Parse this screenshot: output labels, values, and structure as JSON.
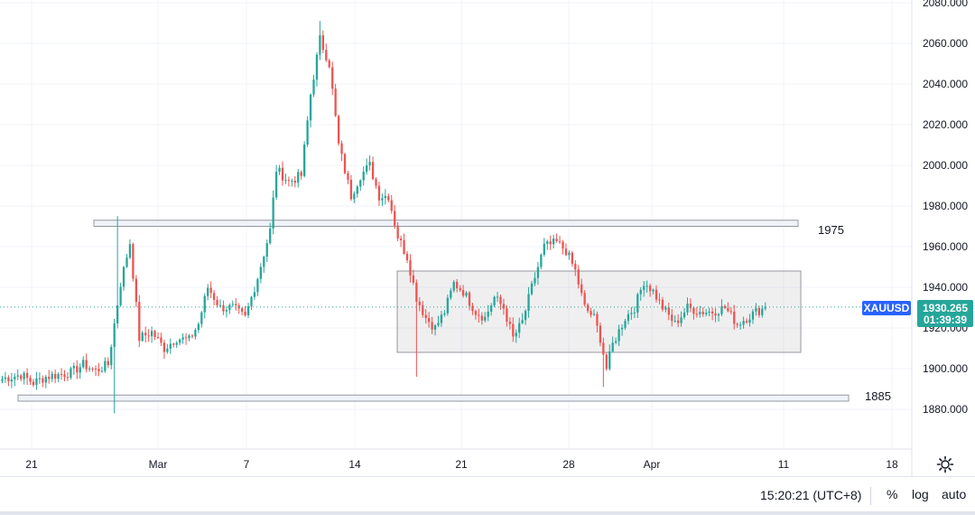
{
  "chart_data": {
    "type": "candlestick",
    "symbol": "XAUUSD",
    "last_price": "1930.265",
    "countdown": "01:39:39",
    "y_ticks": [
      "1880.000",
      "1900.000",
      "1920.000",
      "1940.000",
      "1960.000",
      "1980.000",
      "2000.000",
      "2020.000",
      "2040.000",
      "2060.000",
      "2080.000"
    ],
    "x_ticks": [
      "21",
      "Mar",
      "7",
      "14",
      "21",
      "28",
      "Apr",
      "11",
      "18"
    ],
    "annotations": [
      "1975",
      "1885"
    ],
    "levels": {
      "resistance_1975": {
        "low": 1970,
        "high": 1973,
        "label": "1975"
      },
      "support_1885": {
        "low": 1884,
        "high": 1887,
        "label": "1885"
      },
      "range_box": {
        "low": 1908,
        "high": 1948
      }
    },
    "ylim": [
      1860,
      2080
    ],
    "waypoints": [
      [
        0,
        1895
      ],
      [
        6,
        1897
      ],
      [
        10,
        1893
      ],
      [
        14,
        1896
      ],
      [
        18,
        1897
      ],
      [
        22,
        1898
      ],
      [
        26,
        1902
      ],
      [
        30,
        1899
      ],
      [
        34,
        1902
      ],
      [
        38,
        1942
      ],
      [
        41,
        1962
      ],
      [
        44,
        1915
      ],
      [
        48,
        1918
      ],
      [
        52,
        1910
      ],
      [
        56,
        1915
      ],
      [
        60,
        1914
      ],
      [
        63,
        1922
      ],
      [
        66,
        1940
      ],
      [
        70,
        1930
      ],
      [
        74,
        1930
      ],
      [
        78,
        1925
      ],
      [
        82,
        1945
      ],
      [
        86,
        1968
      ],
      [
        88,
        1998
      ],
      [
        92,
        1992
      ],
      [
        96,
        1995
      ],
      [
        99,
        2035
      ],
      [
        102,
        2062
      ],
      [
        105,
        2050
      ],
      [
        108,
        2010
      ],
      [
        112,
        1985
      ],
      [
        115,
        1995
      ],
      [
        118,
        2000
      ],
      [
        121,
        1985
      ],
      [
        124,
        1985
      ],
      [
        127,
        1965
      ],
      [
        130,
        1955
      ],
      [
        133,
        1935
      ],
      [
        136,
        1925
      ],
      [
        139,
        1920
      ],
      [
        142,
        1928
      ],
      [
        145,
        1942
      ],
      [
        148,
        1938
      ],
      [
        152,
        1928
      ],
      [
        155,
        1925
      ],
      [
        158,
        1935
      ],
      [
        161,
        1930
      ],
      [
        164,
        1915
      ],
      [
        167,
        1923
      ],
      [
        170,
        1940
      ],
      [
        174,
        1960
      ],
      [
        178,
        1962
      ],
      [
        181,
        1958
      ],
      [
        184,
        1948
      ],
      [
        187,
        1930
      ],
      [
        190,
        1925
      ],
      [
        192,
        1915
      ],
      [
        194,
        1900
      ],
      [
        196,
        1912
      ],
      [
        200,
        1925
      ],
      [
        203,
        1930
      ],
      [
        206,
        1943
      ],
      [
        209,
        1938
      ],
      [
        212,
        1930
      ],
      [
        216,
        1922
      ],
      [
        220,
        1930
      ],
      [
        224,
        1928
      ],
      [
        228,
        1928
      ],
      [
        232,
        1930
      ],
      [
        236,
        1922
      ],
      [
        239,
        1925
      ],
      [
        242,
        1928
      ],
      [
        245,
        1930
      ]
    ]
  },
  "statusbar": {
    "time": "15:20:21 (UTC+8)",
    "percent_label": "%",
    "log_label": "log",
    "auto_label": "auto"
  }
}
